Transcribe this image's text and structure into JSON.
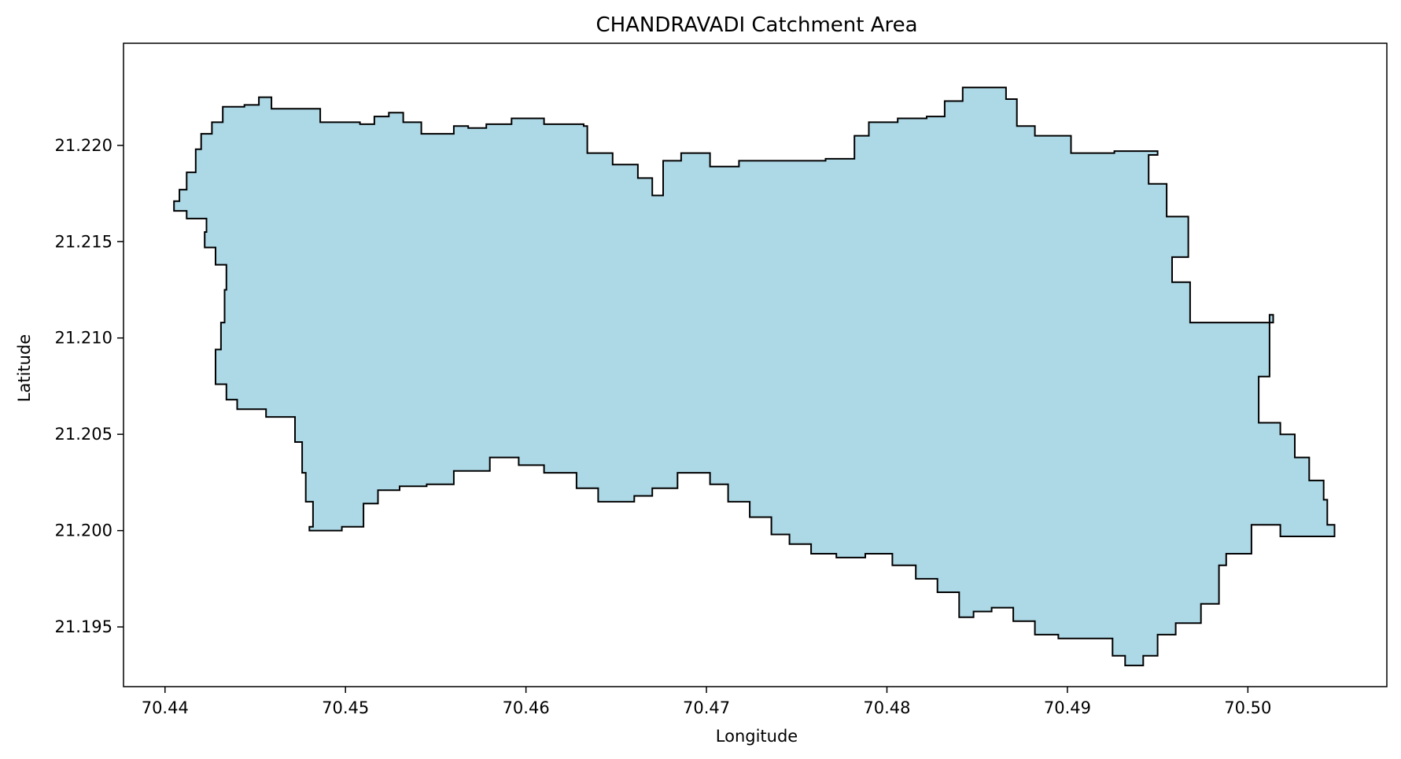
{
  "chart_data": {
    "type": "area",
    "title": "CHANDRAVADI Catchment Area",
    "xlabel": "Longitude",
    "ylabel": "Latitude",
    "xlim": [
      70.4377,
      70.5077
    ],
    "ylim": [
      21.1919,
      21.2253
    ],
    "grid": false,
    "x_ticks": [
      70.44,
      70.45,
      70.46,
      70.47,
      70.48,
      70.49,
      70.5
    ],
    "x_tick_labels": [
      "70.44",
      "70.45",
      "70.46",
      "70.47",
      "70.48",
      "70.49",
      "70.50"
    ],
    "y_ticks": [
      21.195,
      21.2,
      21.205,
      21.21,
      21.215,
      21.22
    ],
    "y_tick_labels": [
      "21.195",
      "21.200",
      "21.205",
      "21.210",
      "21.215",
      "21.220"
    ],
    "fill_color": "#add8e6",
    "edge_color": "#000000",
    "polygon": [
      [
        70.4405,
        21.2171
      ],
      [
        70.4408,
        21.2177
      ],
      [
        70.4412,
        21.2186
      ],
      [
        70.4417,
        21.2198
      ],
      [
        70.442,
        21.2206
      ],
      [
        70.4426,
        21.2212
      ],
      [
        70.4432,
        21.222
      ],
      [
        70.4444,
        21.2221
      ],
      [
        70.4452,
        21.2225
      ],
      [
        70.4459,
        21.2219
      ],
      [
        70.4474,
        21.2219
      ],
      [
        70.4486,
        21.2212
      ],
      [
        70.4508,
        21.2211
      ],
      [
        70.4516,
        21.2215
      ],
      [
        70.4524,
        21.2217
      ],
      [
        70.4532,
        21.2212
      ],
      [
        70.4542,
        21.2206
      ],
      [
        70.4554,
        21.2206
      ],
      [
        70.456,
        21.221
      ],
      [
        70.4568,
        21.2209
      ],
      [
        70.4578,
        21.2211
      ],
      [
        70.4592,
        21.2214
      ],
      [
        70.461,
        21.2211
      ],
      [
        70.4632,
        21.221
      ],
      [
        70.4634,
        21.2196
      ],
      [
        70.4648,
        21.219
      ],
      [
        70.4662,
        21.2183
      ],
      [
        70.467,
        21.2174
      ],
      [
        70.4676,
        21.2192
      ],
      [
        70.4686,
        21.2196
      ],
      [
        70.4702,
        21.2189
      ],
      [
        70.4718,
        21.2192
      ],
      [
        70.4742,
        21.2192
      ],
      [
        70.4766,
        21.2193
      ],
      [
        70.4782,
        21.2205
      ],
      [
        70.479,
        21.2212
      ],
      [
        70.4806,
        21.2214
      ],
      [
        70.4822,
        21.2215
      ],
      [
        70.4832,
        21.2223
      ],
      [
        70.4842,
        21.223
      ],
      [
        70.4853,
        21.223
      ],
      [
        70.4866,
        21.2224
      ],
      [
        70.4872,
        21.221
      ],
      [
        70.4882,
        21.2205
      ],
      [
        70.4902,
        21.2196
      ],
      [
        70.4926,
        21.2197
      ],
      [
        70.495,
        21.2195
      ],
      [
        70.4945,
        21.218
      ],
      [
        70.4955,
        21.2163
      ],
      [
        70.4967,
        21.2158
      ],
      [
        70.4967,
        21.2142
      ],
      [
        70.4958,
        21.2129
      ],
      [
        70.4968,
        21.2108
      ],
      [
        70.5008,
        21.2108
      ],
      [
        70.5014,
        21.2112
      ],
      [
        70.5012,
        21.208
      ],
      [
        70.5006,
        21.2056
      ],
      [
        70.5018,
        21.205
      ],
      [
        70.5026,
        21.2038
      ],
      [
        70.5034,
        21.2026
      ],
      [
        70.5042,
        21.2016
      ],
      [
        70.5044,
        21.2003
      ],
      [
        70.5048,
        21.1997
      ],
      [
        70.5028,
        21.1997
      ],
      [
        70.5018,
        21.2003
      ],
      [
        70.5004,
        21.2003
      ],
      [
        70.5002,
        21.1988
      ],
      [
        70.4988,
        21.1982
      ],
      [
        70.4984,
        21.1962
      ],
      [
        70.4974,
        21.1952
      ],
      [
        70.496,
        21.1946
      ],
      [
        70.495,
        21.1935
      ],
      [
        70.4942,
        21.193
      ],
      [
        70.4932,
        21.1935
      ],
      [
        70.4925,
        21.1944
      ],
      [
        70.491,
        21.1944
      ],
      [
        70.4895,
        21.1946
      ],
      [
        70.4882,
        21.1953
      ],
      [
        70.487,
        21.196
      ],
      [
        70.4858,
        21.1958
      ],
      [
        70.4848,
        21.1955
      ],
      [
        70.484,
        21.1968
      ],
      [
        70.4828,
        21.1975
      ],
      [
        70.4816,
        21.1982
      ],
      [
        70.4803,
        21.1988
      ],
      [
        70.4788,
        21.1986
      ],
      [
        70.4772,
        21.1988
      ],
      [
        70.4758,
        21.1993
      ],
      [
        70.4746,
        21.1998
      ],
      [
        70.4736,
        21.2007
      ],
      [
        70.4724,
        21.2015
      ],
      [
        70.4712,
        21.2024
      ],
      [
        70.4702,
        21.203
      ],
      [
        70.4684,
        21.2022
      ],
      [
        70.467,
        21.2018
      ],
      [
        70.466,
        21.2015
      ],
      [
        70.465,
        21.2015
      ],
      [
        70.464,
        21.2022
      ],
      [
        70.4628,
        21.203
      ],
      [
        70.461,
        21.2034
      ],
      [
        70.4596,
        21.2038
      ],
      [
        70.458,
        21.2031
      ],
      [
        70.456,
        21.2024
      ],
      [
        70.4545,
        21.2023
      ],
      [
        70.453,
        21.2021
      ],
      [
        70.4518,
        21.2014
      ],
      [
        70.451,
        21.2002
      ],
      [
        70.4498,
        21.2
      ],
      [
        70.448,
        21.2002
      ],
      [
        70.4482,
        21.2015
      ],
      [
        70.4478,
        21.203
      ],
      [
        70.4476,
        21.2046
      ],
      [
        70.4472,
        21.2059
      ],
      [
        70.4456,
        21.2063
      ],
      [
        70.444,
        21.2068
      ],
      [
        70.4434,
        21.2076
      ],
      [
        70.4428,
        21.2082
      ],
      [
        70.4428,
        21.2094
      ],
      [
        70.4431,
        21.2108
      ],
      [
        70.4433,
        21.2125
      ],
      [
        70.4434,
        21.2138
      ],
      [
        70.4428,
        21.2147
      ],
      [
        70.4422,
        21.2155
      ],
      [
        70.4423,
        21.2162
      ],
      [
        70.4412,
        21.2166
      ],
      [
        70.4405,
        21.2171
      ]
    ]
  }
}
